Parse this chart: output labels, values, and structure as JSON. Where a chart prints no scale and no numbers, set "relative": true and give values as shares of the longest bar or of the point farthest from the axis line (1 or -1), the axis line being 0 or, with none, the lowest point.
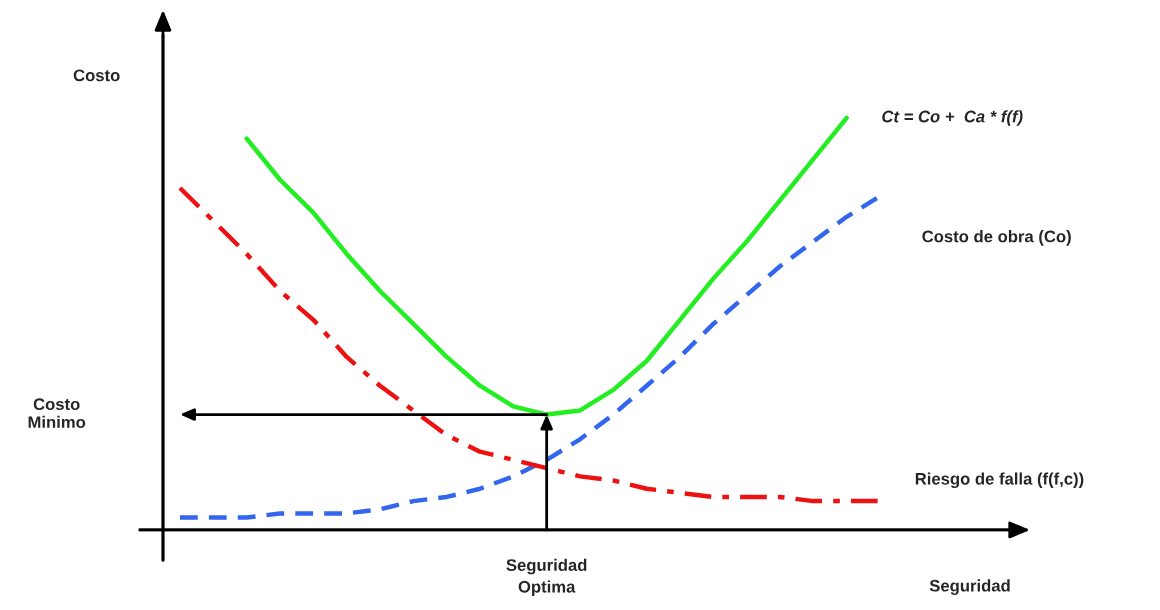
{
  "chart_data": {
    "type": "line",
    "relative": true,
    "xlabel": "Seguridad",
    "ylabel": "Costo",
    "legend": false,
    "categories": [
      null,
      null,
      null,
      null,
      null,
      null,
      null,
      null,
      null,
      null,
      null,
      null,
      null,
      null,
      null,
      null,
      null,
      null,
      null,
      null,
      null,
      null
    ],
    "series": [
      {
        "name": "Ct = Co +  Ca * f(f)",
        "color": "#22ee22",
        "line_style": "solid",
        "values": [
          null,
          null,
          0.95,
          0.85,
          0.77,
          0.67,
          0.58,
          0.5,
          0.42,
          0.35,
          0.3,
          0.28,
          0.29,
          0.34,
          0.41,
          0.51,
          0.61,
          0.7,
          0.8,
          0.9,
          1.0,
          null
        ]
      },
      {
        "name": "Costo de obra (Co)",
        "color": "#3366ee",
        "line_style": "dashed",
        "values": [
          0.03,
          0.03,
          0.03,
          0.04,
          0.04,
          0.04,
          0.05,
          0.07,
          0.08,
          0.1,
          0.13,
          0.17,
          0.22,
          0.28,
          0.35,
          0.42,
          0.5,
          0.57,
          0.64,
          0.7,
          0.76,
          0.81
        ]
      },
      {
        "name": "Riesgo de falla (f(f,c))",
        "color": "#ee1111",
        "line_style": "dashdot",
        "values": [
          0.83,
          0.75,
          0.67,
          0.58,
          0.51,
          0.42,
          0.35,
          0.29,
          0.23,
          0.19,
          0.17,
          0.15,
          0.13,
          0.12,
          0.1,
          0.09,
          0.08,
          0.08,
          0.08,
          0.07,
          0.07,
          0.07
        ]
      }
    ],
    "annotations": [
      "Costo\nMinimo",
      "Seguridad\nOptima"
    ]
  }
}
